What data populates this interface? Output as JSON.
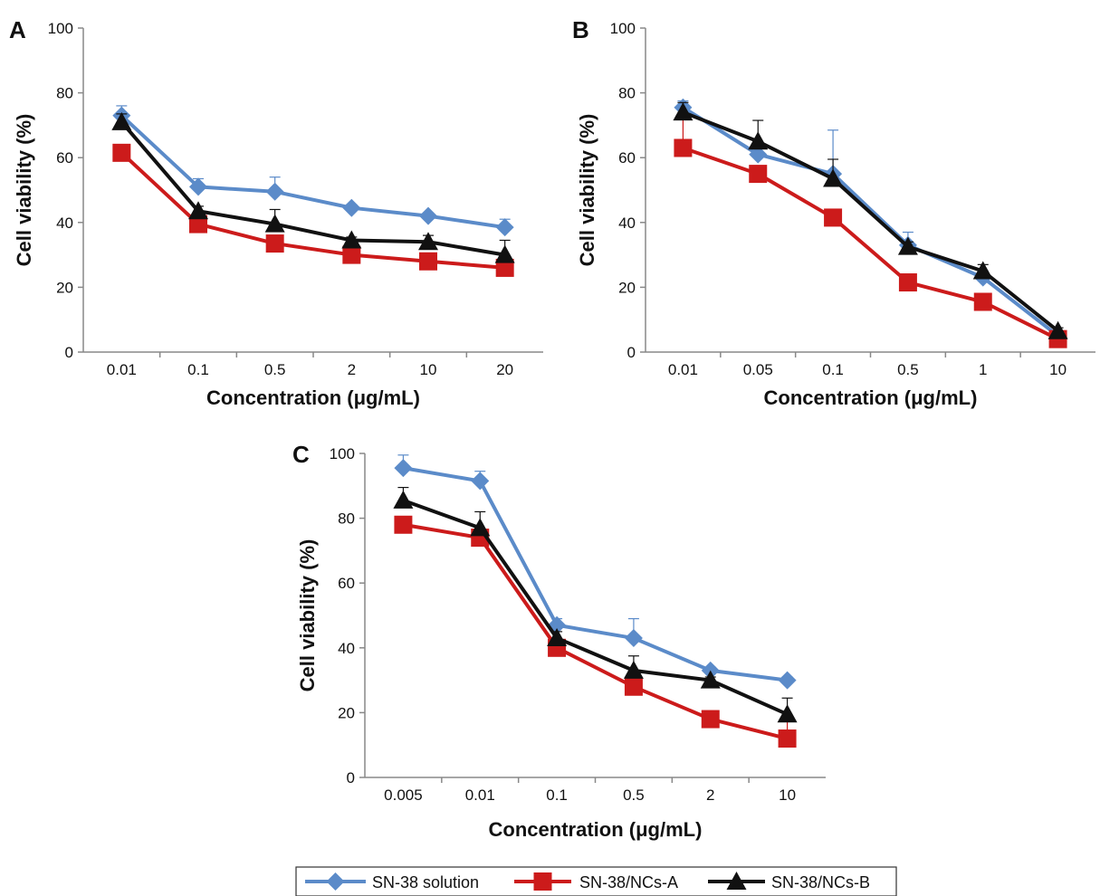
{
  "chart_data": [
    {
      "type": "line",
      "panel": "A",
      "categories": [
        "0.01",
        "0.1",
        "0.5",
        "2",
        "10",
        "20"
      ],
      "xlabel": "Concentration (μg/mL)",
      "ylabel": "Cell viability (%)",
      "ylim": [
        0,
        100
      ],
      "yticks": [
        "0",
        "20",
        "40",
        "60",
        "80",
        "100"
      ],
      "series": [
        {
          "name": "SN-38 solution",
          "values": [
            73,
            51,
            49.5,
            44.5,
            42,
            38.5
          ],
          "errors": [
            3,
            2.5,
            4.5,
            1,
            1,
            2.5
          ]
        },
        {
          "name": "SN-38/NCs-A",
          "values": [
            61.5,
            39.5,
            33.5,
            30,
            28,
            26
          ],
          "errors": [
            1.5,
            2,
            1.5,
            1,
            1,
            1
          ]
        },
        {
          "name": "SN-38/NCs-B",
          "values": [
            71,
            43.5,
            39.5,
            34.5,
            34,
            30
          ],
          "errors": [
            2.5,
            1.5,
            4.5,
            1,
            2,
            4.5
          ]
        }
      ]
    },
    {
      "type": "line",
      "panel": "B",
      "categories": [
        "0.01",
        "0.05",
        "0.1",
        "0.5",
        "1",
        "10"
      ],
      "xlabel": "Concentration (μg/mL)",
      "ylabel": "Cell viability (%)",
      "ylim": [
        0,
        100
      ],
      "yticks": [
        "0",
        "20",
        "40",
        "60",
        "80",
        "100"
      ],
      "series": [
        {
          "name": "SN-38 solution",
          "values": [
            75.5,
            61,
            55,
            33,
            23,
            5
          ],
          "errors": [
            2,
            2,
            13.5,
            4,
            2,
            1
          ]
        },
        {
          "name": "SN-38/NCs-A",
          "values": [
            63,
            55,
            41.5,
            21.5,
            15.5,
            4
          ],
          "errors": [
            9,
            1,
            1,
            1,
            1,
            1
          ]
        },
        {
          "name": "SN-38/NCs-B",
          "values": [
            74,
            65,
            53.5,
            32.5,
            25,
            6.5
          ],
          "errors": [
            3,
            6.5,
            6,
            1.5,
            2,
            1
          ]
        }
      ]
    },
    {
      "type": "line",
      "panel": "C",
      "categories": [
        "0.005",
        "0.01",
        "0.1",
        "0.5",
        "2",
        "10"
      ],
      "xlabel": "Concentration (μg/mL)",
      "ylabel": "Cell viability (%)",
      "ylim": [
        0,
        100
      ],
      "yticks": [
        "0",
        "20",
        "40",
        "60",
        "80",
        "100"
      ],
      "series": [
        {
          "name": "SN-38 solution",
          "values": [
            95.5,
            91.5,
            47,
            43,
            33,
            30
          ],
          "errors": [
            4,
            3,
            2,
            6,
            1,
            1
          ]
        },
        {
          "name": "SN-38/NCs-A",
          "values": [
            78,
            74,
            40,
            28,
            18,
            12
          ],
          "errors": [
            2,
            2,
            2,
            4.5,
            1,
            6
          ]
        },
        {
          "name": "SN-38/NCs-B",
          "values": [
            85.5,
            77,
            43,
            33,
            30,
            19.5
          ],
          "errors": [
            4,
            5,
            2,
            4.5,
            1,
            5
          ]
        }
      ]
    }
  ],
  "legend": {
    "placement": "bottom-center",
    "entries": [
      "SN-38 solution",
      "SN-38/NCs-A",
      "SN-38/NCs-B"
    ]
  },
  "colors": {
    "SN-38 solution": "#5b8bc9",
    "SN-38/NCs-A": "#cc1b1b",
    "SN-38/NCs-B": "#111111"
  },
  "markers": {
    "SN-38 solution": "diamond",
    "SN-38/NCs-A": "square",
    "SN-38/NCs-B": "triangle"
  }
}
